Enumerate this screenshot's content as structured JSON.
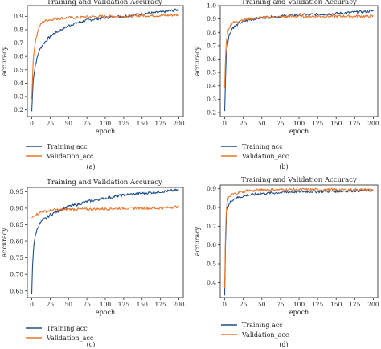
{
  "colors": {
    "training": "#1f4e8c",
    "validation": "#e8752a",
    "axis": "#222222"
  },
  "chart_data": [
    {
      "panel": "(a)",
      "type": "line",
      "title": "Training and Validation Accuracy",
      "xlabel": "epoch",
      "ylabel": "accuracy",
      "xlim": [
        -6,
        206
      ],
      "ylim": [
        0.15,
        0.98
      ],
      "xticks": [
        0,
        25,
        50,
        75,
        100,
        125,
        150,
        175,
        200
      ],
      "yticks": [
        0.2,
        0.3,
        0.4,
        0.5,
        0.6,
        0.7,
        0.8,
        0.9
      ],
      "legend_position": "below",
      "series": [
        {
          "name": "Training acc",
          "color": "#1f4e8c",
          "x": [
            0,
            2,
            5,
            10,
            15,
            20,
            25,
            30,
            40,
            50,
            60,
            75,
            100,
            125,
            150,
            175,
            200
          ],
          "y": [
            0.19,
            0.42,
            0.54,
            0.64,
            0.69,
            0.72,
            0.75,
            0.77,
            0.8,
            0.83,
            0.85,
            0.87,
            0.89,
            0.9,
            0.92,
            0.93,
            0.95
          ]
        },
        {
          "name": "Validation_acc",
          "color": "#e8752a",
          "x": [
            0,
            2,
            5,
            10,
            15,
            20,
            25,
            30,
            40,
            50,
            60,
            75,
            100,
            125,
            150,
            175,
            200
          ],
          "y": [
            0.28,
            0.57,
            0.72,
            0.82,
            0.86,
            0.87,
            0.875,
            0.88,
            0.885,
            0.89,
            0.89,
            0.895,
            0.9,
            0.9,
            0.905,
            0.905,
            0.91
          ]
        }
      ]
    },
    {
      "panel": "(b)",
      "type": "line",
      "title": "Training and Validation Accuracy",
      "xlabel": "epoch",
      "ylabel": "accuracy",
      "xlim": [
        -6,
        206
      ],
      "ylim": [
        0.17,
        1.0
      ],
      "xticks": [
        0,
        25,
        50,
        75,
        100,
        125,
        150,
        175,
        200
      ],
      "yticks": [
        0.2,
        0.3,
        0.4,
        0.5,
        0.6,
        0.7,
        0.8,
        0.9,
        1.0
      ],
      "legend_position": "below",
      "series": [
        {
          "name": "Training acc",
          "color": "#1f4e8c",
          "x": [
            0,
            1,
            2,
            4,
            6,
            10,
            15,
            20,
            25,
            30,
            40,
            50,
            75,
            100,
            125,
            150,
            175,
            200
          ],
          "y": [
            0.21,
            0.45,
            0.62,
            0.72,
            0.78,
            0.83,
            0.85,
            0.87,
            0.88,
            0.89,
            0.9,
            0.91,
            0.92,
            0.93,
            0.935,
            0.94,
            0.95,
            0.96
          ]
        },
        {
          "name": "Validation_acc",
          "color": "#e8752a",
          "x": [
            0,
            1,
            2,
            4,
            6,
            10,
            15,
            20,
            25,
            30,
            40,
            50,
            75,
            100,
            125,
            150,
            175,
            200
          ],
          "y": [
            0.39,
            0.6,
            0.72,
            0.8,
            0.84,
            0.87,
            0.88,
            0.89,
            0.895,
            0.9,
            0.905,
            0.91,
            0.915,
            0.92,
            0.92,
            0.92,
            0.92,
            0.92
          ]
        }
      ]
    },
    {
      "panel": "(c)",
      "type": "line",
      "title": "Training and Validation Accuracy",
      "xlabel": "epoch",
      "ylabel": "accuracy",
      "xlim": [
        -6,
        206
      ],
      "ylim": [
        0.63,
        0.963
      ],
      "xticks": [
        0,
        25,
        50,
        75,
        100,
        125,
        150,
        175,
        200
      ],
      "yticks": [
        0.65,
        0.7,
        0.75,
        0.8,
        0.85,
        0.9,
        0.95
      ],
      "legend_position": "below",
      "series": [
        {
          "name": "Training acc",
          "color": "#1f4e8c",
          "x": [
            0,
            1,
            2,
            3,
            5,
            8,
            10,
            15,
            20,
            25,
            30,
            40,
            50,
            60,
            75,
            100,
            125,
            150,
            175,
            200
          ],
          "y": [
            0.64,
            0.72,
            0.76,
            0.79,
            0.82,
            0.84,
            0.85,
            0.865,
            0.87,
            0.88,
            0.885,
            0.895,
            0.905,
            0.91,
            0.92,
            0.93,
            0.94,
            0.945,
            0.95,
            0.955
          ]
        },
        {
          "name": "Validation_acc",
          "color": "#e8752a",
          "x": [
            0,
            2,
            5,
            10,
            15,
            20,
            25,
            30,
            40,
            50,
            75,
            100,
            125,
            150,
            175,
            200
          ],
          "y": [
            0.87,
            0.875,
            0.88,
            0.885,
            0.89,
            0.89,
            0.893,
            0.895,
            0.895,
            0.897,
            0.897,
            0.898,
            0.9,
            0.9,
            0.9,
            0.905
          ]
        }
      ]
    },
    {
      "panel": "(d)",
      "type": "line",
      "title": "Training and Validation Accuracy",
      "xlabel": "epoch",
      "ylabel": "accuracy",
      "xlim": [
        -6,
        206
      ],
      "ylim": [
        0.32,
        0.92
      ],
      "xticks": [
        0,
        25,
        50,
        75,
        100,
        125,
        150,
        175,
        200
      ],
      "yticks": [
        0.4,
        0.5,
        0.6,
        0.7,
        0.8,
        0.9
      ],
      "legend_position": "below",
      "series": [
        {
          "name": "Training acc",
          "color": "#1f4e8c",
          "x": [
            0,
            1,
            2,
            3,
            5,
            8,
            10,
            15,
            20,
            25,
            30,
            40,
            50,
            75,
            100,
            125,
            150,
            175,
            200
          ],
          "y": [
            0.33,
            0.6,
            0.72,
            0.78,
            0.81,
            0.83,
            0.84,
            0.85,
            0.855,
            0.86,
            0.865,
            0.87,
            0.875,
            0.88,
            0.885,
            0.885,
            0.887,
            0.89,
            0.89
          ]
        },
        {
          "name": "Validation_acc",
          "color": "#e8752a",
          "x": [
            0,
            1,
            2,
            3,
            5,
            8,
            10,
            15,
            20,
            25,
            30,
            40,
            50,
            75,
            100,
            125,
            150,
            175,
            200
          ],
          "y": [
            0.37,
            0.65,
            0.77,
            0.82,
            0.85,
            0.86,
            0.87,
            0.875,
            0.88,
            0.885,
            0.89,
            0.89,
            0.895,
            0.895,
            0.895,
            0.895,
            0.895,
            0.895,
            0.895
          ]
        }
      ]
    }
  ]
}
